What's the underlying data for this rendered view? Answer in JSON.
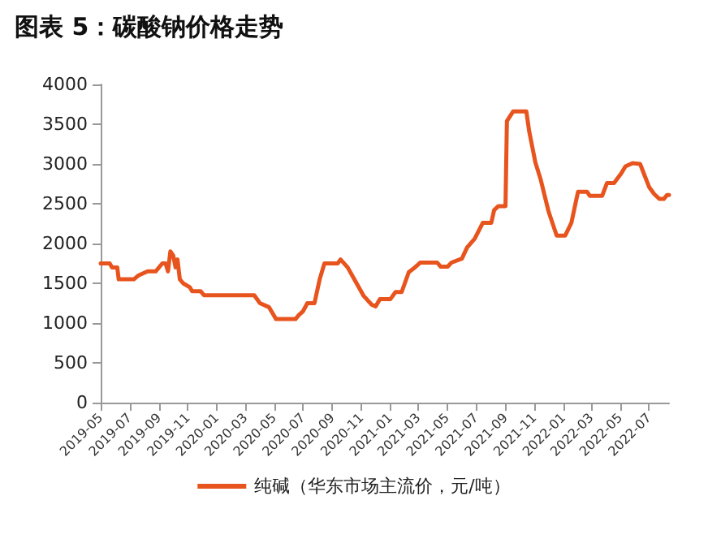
{
  "chart_data": {
    "type": "line",
    "title": "图表 5：碳酸钠价格走势",
    "x": [
      "2019-05-01",
      "2019-05-20",
      "2019-05-25",
      "2019-06-05",
      "2019-06-08",
      "2019-07-10",
      "2019-07-20",
      "2019-08-08",
      "2019-08-25",
      "2019-09-08",
      "2019-09-15",
      "2019-09-20",
      "2019-09-25",
      "2019-10-01",
      "2019-10-06",
      "2019-10-10",
      "2019-10-15",
      "2019-10-22",
      "2019-11-05",
      "2019-11-10",
      "2019-11-28",
      "2019-12-05",
      "2020-03-20",
      "2020-04-01",
      "2020-04-20",
      "2020-04-25",
      "2020-05-05",
      "2020-06-15",
      "2020-06-22",
      "2020-07-01",
      "2020-07-10",
      "2020-07-25",
      "2020-08-05",
      "2020-08-15",
      "2020-09-12",
      "2020-09-18",
      "2020-10-03",
      "2020-10-18",
      "2020-11-06",
      "2020-11-23",
      "2020-12-01",
      "2020-12-10",
      "2021-01-01",
      "2021-01-12",
      "2021-01-25",
      "2021-02-09",
      "2021-02-18",
      "2021-03-05",
      "2021-04-10",
      "2021-04-17",
      "2021-05-02",
      "2021-05-10",
      "2021-06-01",
      "2021-06-12",
      "2021-06-28",
      "2021-07-15",
      "2021-08-02",
      "2021-08-08",
      "2021-08-17",
      "2021-09-01",
      "2021-09-04",
      "2021-09-17",
      "2021-10-15",
      "2021-10-21",
      "2021-11-03",
      "2021-11-14",
      "2021-12-01",
      "2021-12-18",
      "2022-01-05",
      "2022-01-18",
      "2022-02-01",
      "2022-02-20",
      "2022-02-26",
      "2022-03-24",
      "2022-04-03",
      "2022-04-18",
      "2022-05-03",
      "2022-05-12",
      "2022-05-27",
      "2022-06-12",
      "2022-07-01",
      "2022-07-12",
      "2022-07-23",
      "2022-08-01",
      "2022-08-08",
      "2022-08-12"
    ],
    "series": [
      {
        "name": "纯碱（华东市场主流价，元/吨）",
        "color": "#e8541e",
        "values": [
          1750,
          1750,
          1700,
          1700,
          1550,
          1550,
          1600,
          1650,
          1650,
          1750,
          1750,
          1650,
          1900,
          1850,
          1700,
          1800,
          1550,
          1500,
          1450,
          1400,
          1400,
          1350,
          1350,
          1250,
          1200,
          1150,
          1050,
          1050,
          1100,
          1150,
          1250,
          1250,
          1550,
          1750,
          1750,
          1800,
          1700,
          1540,
          1340,
          1230,
          1210,
          1300,
          1300,
          1390,
          1390,
          1640,
          1680,
          1760,
          1760,
          1710,
          1710,
          1760,
          1810,
          1950,
          2060,
          2260,
          2260,
          2420,
          2470,
          2470,
          3540,
          3660,
          3660,
          3410,
          3020,
          2810,
          2400,
          2100,
          2100,
          2260,
          2650,
          2650,
          2600,
          2600,
          2760,
          2760,
          2880,
          2970,
          3010,
          3000,
          2710,
          2620,
          2560,
          2560,
          2610,
          2610
        ]
      }
    ],
    "xlim": [
      "2019-05-01",
      "2022-08-12"
    ],
    "xticks": [
      {
        "value": "2019-05",
        "label": "2019-05"
      },
      {
        "value": "2019-07",
        "label": "2019-07"
      },
      {
        "value": "2019-09",
        "label": "2019-09"
      },
      {
        "value": "2019-11",
        "label": "2019-11"
      },
      {
        "value": "2020-01",
        "label": "2020-01"
      },
      {
        "value": "2020-03",
        "label": "2020-03"
      },
      {
        "value": "2020-05",
        "label": "2020-05"
      },
      {
        "value": "2020-07",
        "label": "2020-07"
      },
      {
        "value": "2020-09",
        "label": "2020-09"
      },
      {
        "value": "2020-11",
        "label": "2020-11"
      },
      {
        "value": "2021-01",
        "label": "2021-01"
      },
      {
        "value": "2021-03",
        "label": "2021-03"
      },
      {
        "value": "2021-05",
        "label": "2021-05"
      },
      {
        "value": "2021-07",
        "label": "2021-07"
      },
      {
        "value": "2021-09",
        "label": "2021-09"
      },
      {
        "value": "2021-11",
        "label": "2021-11"
      },
      {
        "value": "2022-01",
        "label": "2022-01"
      },
      {
        "value": "2022-03",
        "label": "2022-03"
      },
      {
        "value": "2022-05",
        "label": "2022-05"
      },
      {
        "value": "2022-07",
        "label": "2022-07"
      }
    ],
    "ylim": [
      0,
      4000
    ],
    "yticks": [
      0,
      500,
      1000,
      1500,
      2000,
      2500,
      3000,
      3500,
      4000
    ],
    "grid": false,
    "legend": "bottom",
    "marker": "none",
    "line_style": "solid"
  }
}
